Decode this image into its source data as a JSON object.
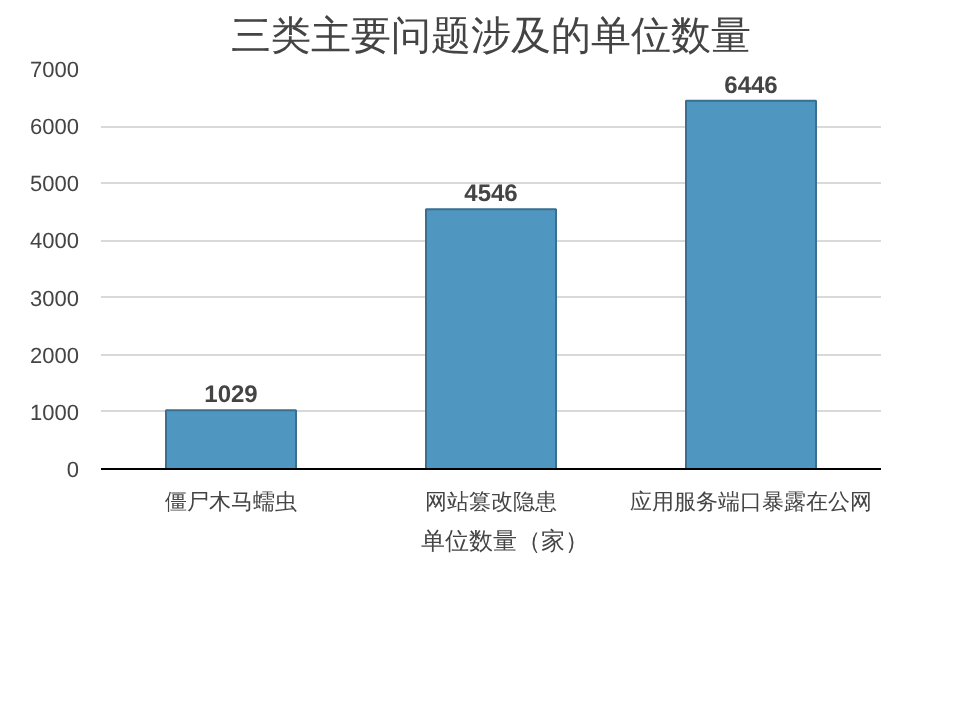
{
  "chart_data": {
    "type": "bar",
    "title": "三类主要问题涉及的单位数量",
    "categories": [
      "僵尸木马蠕虫",
      "网站篡改隐患",
      "应用服务端口暴露在公网"
    ],
    "series": [
      {
        "name": "单位数量（家）",
        "color": "#4f97c0",
        "values": [
          1029,
          4546,
          6446
        ]
      }
    ],
    "ylim": [
      0,
      7000
    ],
    "yticks": [
      0,
      1000,
      2000,
      3000,
      4000,
      5000,
      6000,
      7000
    ],
    "grid": "y",
    "legend": "bottom",
    "data_labels": true
  }
}
